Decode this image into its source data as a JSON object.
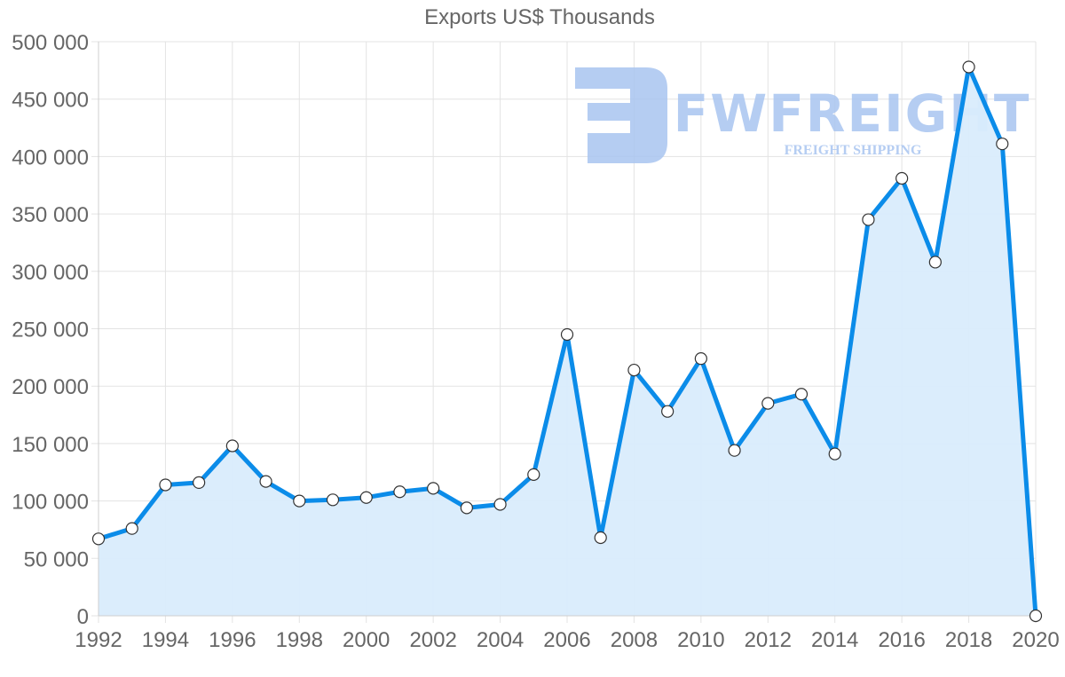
{
  "chart_data": {
    "type": "area",
    "title": "Exports US$ Thousands",
    "xlabel": "",
    "ylabel": "",
    "x": [
      1992,
      1993,
      1994,
      1995,
      1996,
      1997,
      1998,
      1999,
      2000,
      2001,
      2002,
      2003,
      2004,
      2005,
      2006,
      2007,
      2008,
      2009,
      2010,
      2011,
      2012,
      2013,
      2014,
      2015,
      2016,
      2017,
      2018,
      2019,
      2020
    ],
    "series": [
      {
        "name": "Exports US$ Thousands",
        "values": [
          67000,
          76000,
          114000,
          116000,
          148000,
          117000,
          100000,
          101000,
          103000,
          108000,
          111000,
          94000,
          97000,
          123000,
          245000,
          68000,
          214000,
          178000,
          224000,
          144000,
          185000,
          193000,
          141000,
          345000,
          381000,
          308000,
          478000,
          411000,
          0
        ],
        "color": "#0b8ce9",
        "fill": "#d9ecfc"
      }
    ],
    "ylim": [
      0,
      500000
    ],
    "yticks": [
      "0",
      "50 000",
      "100 000",
      "150 000",
      "200 000",
      "250 000",
      "300 000",
      "350 000",
      "400 000",
      "450 000",
      "500 000"
    ],
    "xticks": [
      "1992",
      "1994",
      "1996",
      "1998",
      "2000",
      "2002",
      "2004",
      "2006",
      "2008",
      "2010",
      "2012",
      "2014",
      "2016",
      "2018",
      "2020"
    ],
    "grid": true,
    "legend": "none"
  },
  "watermark": {
    "brand": "FWFREIGHT",
    "tagline": "FREIGHT SHIPPING",
    "color": "#a9c5f0"
  }
}
